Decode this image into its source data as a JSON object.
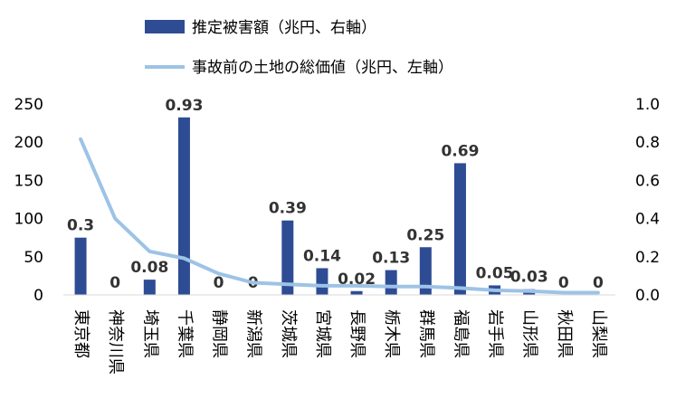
{
  "chart_data": {
    "type": "bar",
    "categories": [
      "東京都",
      "神奈川県",
      "埼玉県",
      "千葉県",
      "静岡県",
      "新潟県",
      "茨城県",
      "宮城県",
      "長野県",
      "栃木県",
      "群馬県",
      "福島県",
      "岩手県",
      "山形県",
      "秋田県",
      "山梨県"
    ],
    "series": [
      {
        "name": "推定被害額（兆円、右軸）",
        "type": "bar",
        "axis": "right",
        "color": "#2E4C94",
        "values": [
          0.3,
          0,
          0.08,
          0.93,
          0,
          0,
          0.39,
          0.14,
          0.02,
          0.13,
          0.25,
          0.69,
          0.05,
          0.03,
          0,
          0
        ],
        "labels": [
          "0.3",
          "0",
          "0.08",
          "0.93",
          "0",
          "0",
          "0.39",
          "0.14",
          "0.02",
          "0.13",
          "0.25",
          "0.69",
          "0.05",
          "0.03",
          "0",
          "0"
        ]
      },
      {
        "name": "事故前の土地の総価値（兆円、左軸）",
        "type": "line",
        "axis": "left",
        "color": "#9DC3E6",
        "values": [
          204,
          100,
          57,
          48,
          28,
          16,
          14,
          12,
          12,
          11,
          11,
          9,
          6,
          5,
          3,
          3
        ]
      }
    ],
    "y_left": {
      "min": 0,
      "max": 250,
      "ticks": [
        "0",
        "50",
        "100",
        "150",
        "200",
        "250"
      ]
    },
    "y_right": {
      "min": 0,
      "max": 1.0,
      "ticks": [
        "0.0",
        "0.2",
        "0.4",
        "0.6",
        "0.8",
        "1.0"
      ]
    },
    "legend_position": "top",
    "grid": false
  }
}
